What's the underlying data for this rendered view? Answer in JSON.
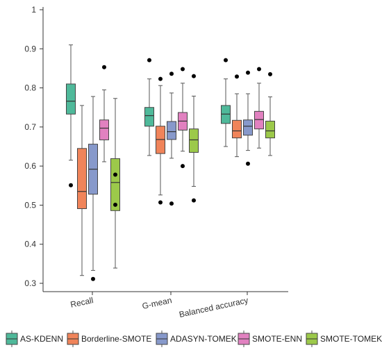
{
  "chart_data": {
    "type": "box",
    "categories": [
      "Recall",
      "G-mean",
      "Balanced accuracy"
    ],
    "ylim": [
      0.3,
      1.0
    ],
    "yticks": [
      "0.3",
      "0.4",
      "0.5",
      "0.6",
      "0.7",
      "0.8",
      "0.9",
      "1"
    ],
    "legend_position": "bottom",
    "series": [
      {
        "name": "AS-KDENN",
        "color": "#4fb99a",
        "boxes": [
          {
            "whisker_low": 0.615,
            "q1": 0.733,
            "median": 0.766,
            "q3": 0.81,
            "whisker_high": 0.91,
            "outliers": [
              0.551
            ]
          },
          {
            "whisker_low": 0.627,
            "q1": 0.702,
            "median": 0.729,
            "q3": 0.75,
            "whisker_high": 0.823,
            "outliers": [
              0.871
            ]
          },
          {
            "whisker_low": 0.65,
            "q1": 0.709,
            "median": 0.733,
            "q3": 0.755,
            "whisker_high": 0.823,
            "outliers": [
              0.871
            ]
          }
        ]
      },
      {
        "name": "Borderline-SMOTE",
        "color": "#f0845a",
        "boxes": [
          {
            "whisker_low": 0.32,
            "q1": 0.491,
            "median": 0.535,
            "q3": 0.645,
            "whisker_high": 0.755,
            "outliers": []
          },
          {
            "whisker_low": 0.526,
            "q1": 0.632,
            "median": 0.668,
            "q3": 0.702,
            "whisker_high": 0.806,
            "outliers": [
              0.507,
              0.823
            ]
          },
          {
            "whisker_low": 0.624,
            "q1": 0.672,
            "median": 0.69,
            "q3": 0.717,
            "whisker_high": 0.785,
            "outliers": [
              0.829
            ]
          }
        ]
      },
      {
        "name": "ADASYN-TOMEK",
        "color": "#8799cb",
        "boxes": [
          {
            "whisker_low": 0.333,
            "q1": 0.528,
            "median": 0.592,
            "q3": 0.656,
            "whisker_high": 0.778,
            "outliers": [
              0.311
            ]
          },
          {
            "whisker_low": 0.62,
            "q1": 0.668,
            "median": 0.688,
            "q3": 0.714,
            "whisker_high": 0.787,
            "outliers": [
              0.504,
              0.836
            ]
          },
          {
            "whisker_low": 0.64,
            "q1": 0.679,
            "median": 0.702,
            "q3": 0.718,
            "whisker_high": 0.785,
            "outliers": [
              0.606,
              0.839
            ]
          }
        ]
      },
      {
        "name": "SMOTE-ENN",
        "color": "#e181c0",
        "boxes": [
          {
            "whisker_low": 0.611,
            "q1": 0.667,
            "median": 0.697,
            "q3": 0.718,
            "whisker_high": 0.795,
            "outliers": [
              0.853
            ]
          },
          {
            "whisker_low": 0.638,
            "q1": 0.692,
            "median": 0.715,
            "q3": 0.737,
            "whisker_high": 0.812,
            "outliers": [
              0.6,
              0.848
            ]
          },
          {
            "whisker_low": 0.646,
            "q1": 0.695,
            "median": 0.719,
            "q3": 0.74,
            "whisker_high": 0.812,
            "outliers": [
              0.848
            ]
          }
        ]
      },
      {
        "name": "SMOTE-TOMEK",
        "color": "#9cc94a",
        "boxes": [
          {
            "whisker_low": 0.339,
            "q1": 0.486,
            "median": 0.558,
            "q3": 0.619,
            "whisker_high": 0.773,
            "outliers": [
              0.501,
              0.578
            ]
          },
          {
            "whisker_low": 0.548,
            "q1": 0.635,
            "median": 0.667,
            "q3": 0.695,
            "whisker_high": 0.779,
            "outliers": [
              0.512,
              0.83
            ]
          },
          {
            "whisker_low": 0.627,
            "q1": 0.672,
            "median": 0.69,
            "q3": 0.715,
            "whisker_high": 0.777,
            "outliers": [
              0.835
            ]
          }
        ]
      }
    ]
  }
}
